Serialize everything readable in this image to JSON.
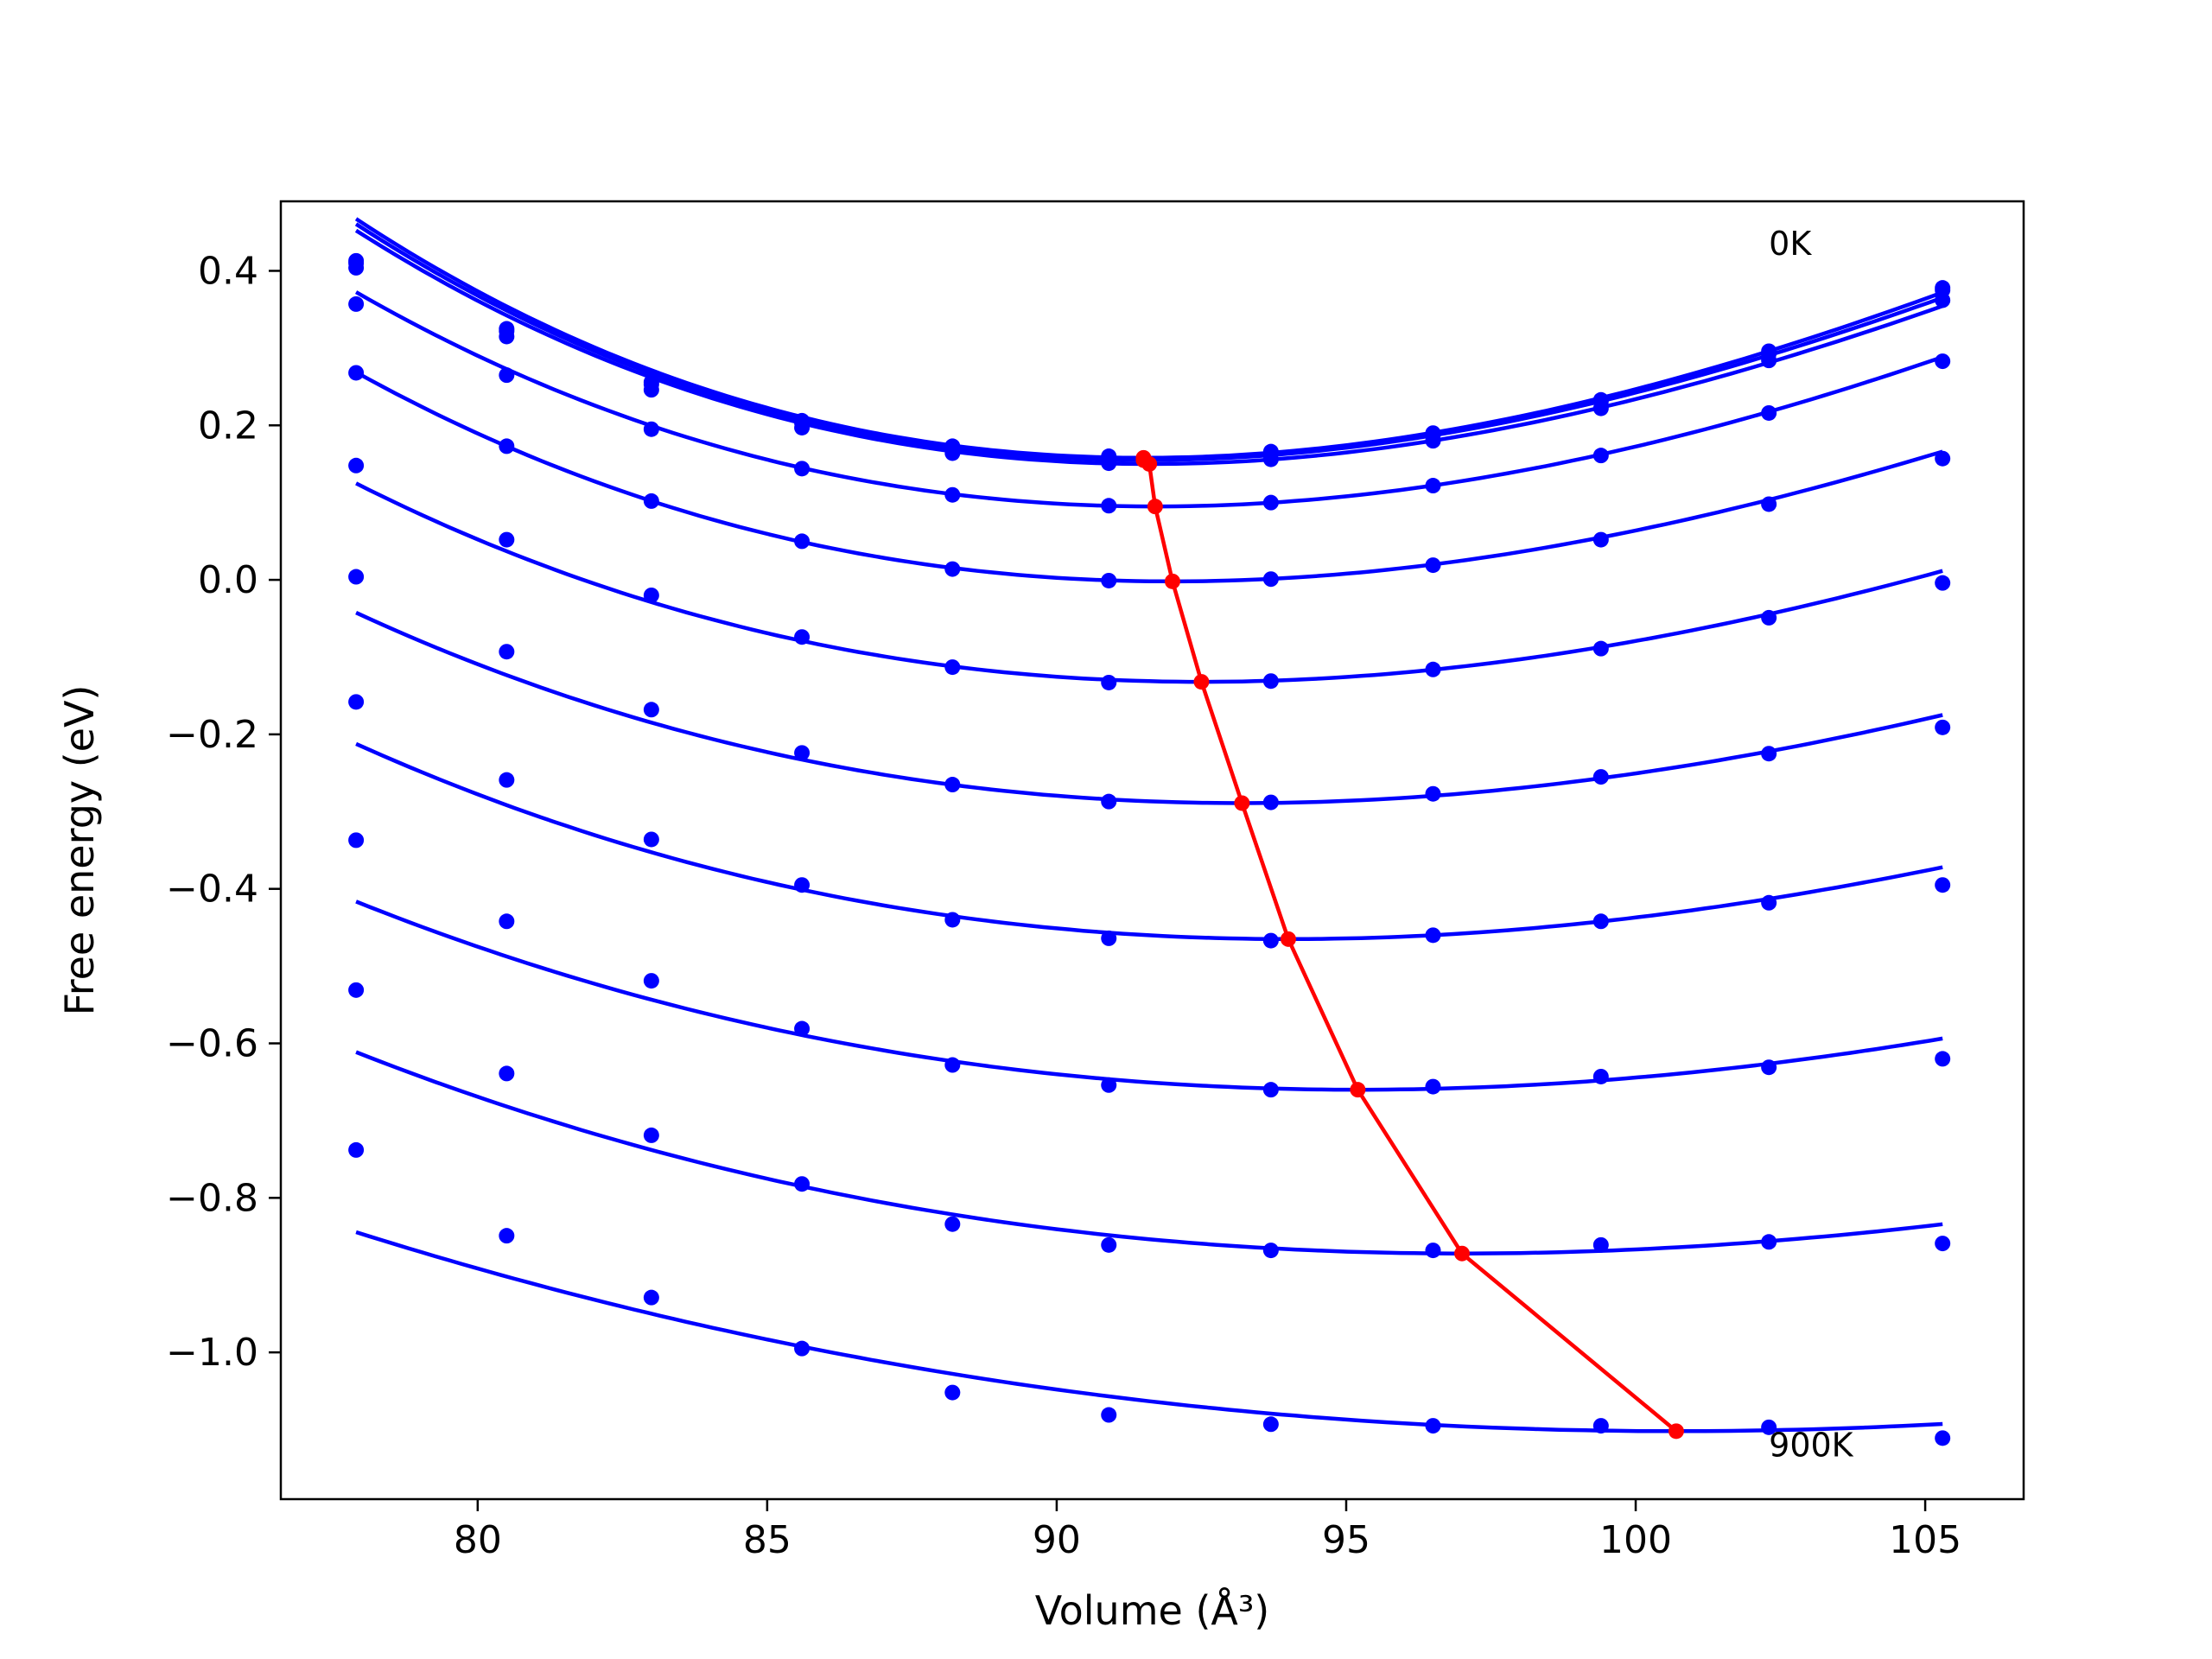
{
  "chart_data": {
    "type": "line",
    "xlabel": "Volume (Å³)",
    "ylabel": "Free energy (eV)",
    "xlim": [
      76.6,
      106.7
    ],
    "ylim": [
      -1.19,
      0.49
    ],
    "xticks": [
      80,
      85,
      90,
      95,
      100,
      105
    ],
    "xtick_labels": [
      "80",
      "85",
      "90",
      "95",
      "100",
      "105"
    ],
    "yticks": [
      -1.0,
      -0.8,
      -0.6,
      -0.4,
      -0.2,
      0.0,
      0.2,
      0.4
    ],
    "ytick_labels": [
      "−1.0",
      "−0.8",
      "−0.6",
      "−0.4",
      "−0.2",
      "0.0",
      "0.2",
      "0.4"
    ],
    "grid": false,
    "annotations": [
      {
        "text": "0K",
        "x": 102.3,
        "y": 0.435
      },
      {
        "text": "900K",
        "x": 102.3,
        "y": -1.12
      }
    ],
    "colors": {
      "fit": "#0000ff",
      "points": "#0000ff",
      "minimum_path": "#ff0000"
    },
    "volumes": [
      77.9,
      80.5,
      83.0,
      85.6,
      88.2,
      90.9,
      93.7,
      96.5,
      99.4,
      102.3,
      105.3
    ],
    "isotherms": [
      {
        "points": [
          0.413,
          0.325,
          0.256,
          0.206,
          0.173,
          0.16,
          0.166,
          0.19,
          0.233,
          0.296,
          0.378
        ],
        "fit": {
          "v0": 91.5,
          "e0": 0.158,
          "a": 0.0014,
          "b": 2e-05
        }
      },
      {
        "points": [
          0.41,
          0.322,
          0.253,
          0.203,
          0.171,
          0.158,
          0.164,
          0.188,
          0.231,
          0.293,
          0.375
        ],
        "fit": {
          "v0": 91.5,
          "e0": 0.155,
          "a": 0.00138,
          "b": 2e-05
        }
      },
      {
        "points": [
          0.404,
          0.315,
          0.246,
          0.197,
          0.164,
          0.151,
          0.156,
          0.18,
          0.222,
          0.284,
          0.362
        ],
        "fit": {
          "v0": 91.6,
          "e0": 0.15,
          "a": 0.00135,
          "b": 1.9e-05
        }
      },
      {
        "points": [
          0.357,
          0.265,
          0.195,
          0.144,
          0.11,
          0.096,
          0.1,
          0.122,
          0.161,
          0.216,
          0.283
        ],
        "fit": {
          "v0": 91.7,
          "e0": 0.095,
          "a": 0.00125,
          "b": 1.5e-05
        }
      },
      {
        "points": [
          0.268,
          0.173,
          0.102,
          0.05,
          0.014,
          -0.001,
          0.001,
          0.019,
          0.052,
          0.098,
          0.157
        ],
        "fit": {
          "v0": 92.0,
          "e0": -0.002,
          "a": 0.00115,
          "b": 1.5e-05
        }
      },
      {
        "points": [
          0.148,
          0.052,
          -0.02,
          -0.074,
          -0.113,
          -0.133,
          -0.131,
          -0.116,
          -0.089,
          -0.049,
          -0.004
        ],
        "fit": {
          "v0": 92.5,
          "e0": -0.132,
          "a": 0.00103,
          "b": 1.2e-05
        }
      },
      {
        "points": [
          0.004,
          -0.093,
          -0.168,
          -0.224,
          -0.265,
          -0.287,
          -0.288,
          -0.277,
          -0.255,
          -0.225,
          -0.191
        ],
        "fit": {
          "v0": 93.2,
          "e0": -0.289,
          "a": 0.0009,
          "b": 1e-05
        }
      },
      {
        "points": [
          -0.158,
          -0.259,
          -0.336,
          -0.395,
          -0.44,
          -0.464,
          -0.467,
          -0.46,
          -0.442,
          -0.418,
          -0.395
        ],
        "fit": {
          "v0": 94.0,
          "e0": -0.465,
          "a": 0.00083,
          "b": 9e-06
        }
      },
      {
        "points": [
          -0.337,
          -0.442,
          -0.519,
          -0.581,
          -0.628,
          -0.654,
          -0.66,
          -0.656,
          -0.643,
          -0.631,
          -0.62
        ],
        "fit": {
          "v0": 95.2,
          "e0": -0.66,
          "a": 0.00071,
          "b": 6e-06
        }
      },
      {
        "points": [
          -0.531,
          -0.639,
          -0.719,
          -0.782,
          -0.834,
          -0.861,
          -0.868,
          -0.868,
          -0.861,
          -0.857,
          -0.859
        ],
        "fit": {
          "v0": 97.0,
          "e0": -0.872,
          "a": 0.0006,
          "b": 6e-06
        }
      },
      {
        "points": [
          -0.738,
          -0.849,
          -0.929,
          -0.995,
          -1.052,
          -1.081,
          -1.093,
          -1.095,
          -1.095,
          -1.097,
          -1.111
        ],
        "fit": {
          "v0": 100.7,
          "e0": -1.102,
          "a": 0.00045,
          "b": 2e-06
        }
      }
    ],
    "minimum_path": {
      "x": [
        91.5,
        91.5,
        91.6,
        91.7,
        92.0,
        92.5,
        93.2,
        94.0,
        95.2,
        97.0,
        100.7
      ],
      "y": [
        0.158,
        0.155,
        0.15,
        0.095,
        -0.002,
        -0.132,
        -0.289,
        -0.465,
        -0.66,
        -0.872,
        -1.102
      ]
    }
  }
}
